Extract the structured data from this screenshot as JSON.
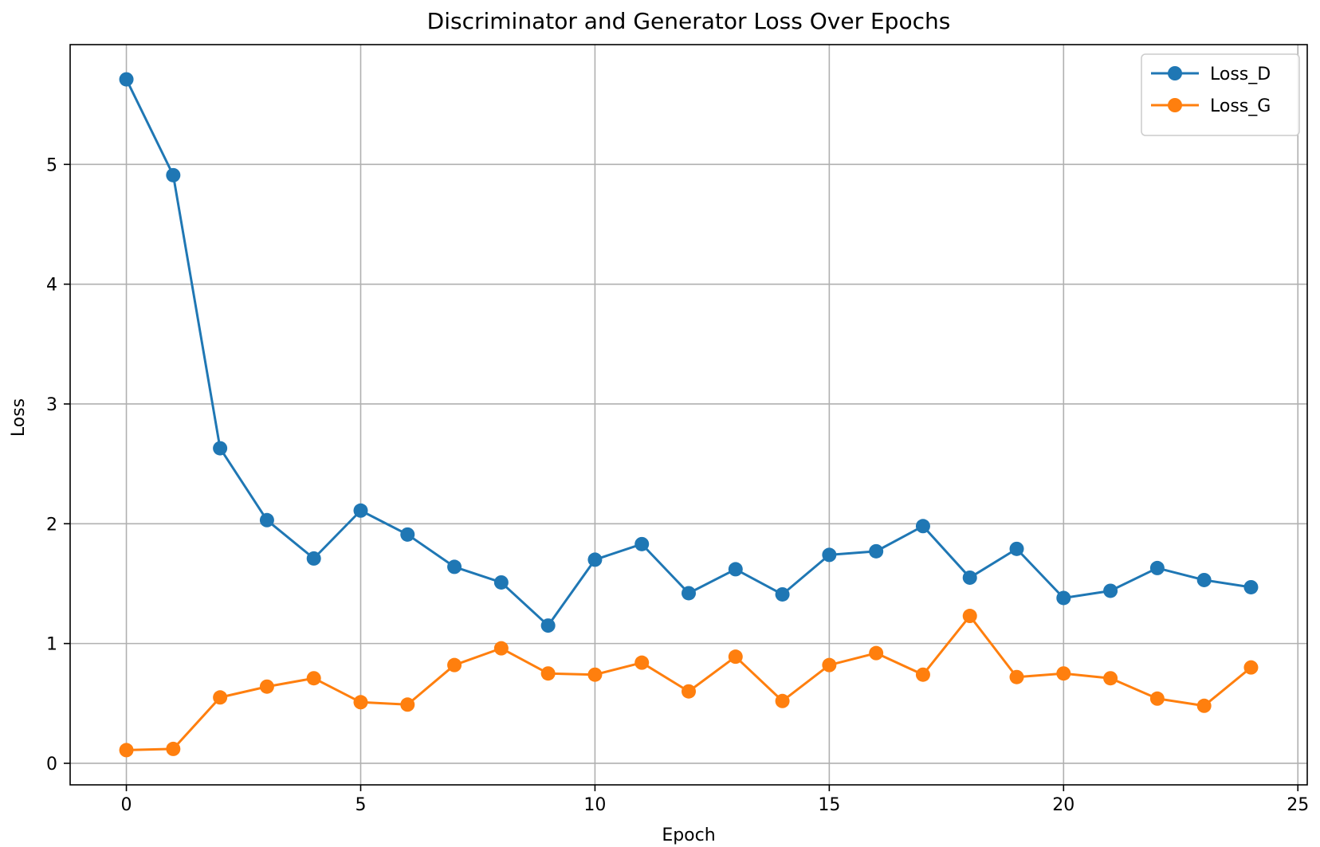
{
  "chart_data": {
    "type": "line",
    "title": "Discriminator and Generator Loss Over Epochs",
    "xlabel": "Epoch",
    "ylabel": "Loss",
    "xlim": [
      -1.2,
      25.2
    ],
    "ylim": [
      -0.18,
      6.0
    ],
    "xticks": [
      0,
      5,
      10,
      15,
      20,
      25
    ],
    "yticks": [
      0,
      1,
      2,
      3,
      4,
      5
    ],
    "grid": true,
    "legend_position": "top-right",
    "x": [
      0,
      1,
      2,
      3,
      4,
      5,
      6,
      7,
      8,
      9,
      10,
      11,
      12,
      13,
      14,
      15,
      16,
      17,
      18,
      19,
      20,
      21,
      22,
      23,
      24
    ],
    "series": [
      {
        "name": "Loss_D",
        "color": "#1f77b4",
        "values": [
          5.71,
          4.91,
          2.63,
          2.03,
          1.71,
          2.11,
          1.91,
          1.64,
          1.51,
          1.15,
          1.7,
          1.83,
          1.42,
          1.62,
          1.41,
          1.74,
          1.77,
          1.98,
          1.55,
          1.79,
          1.38,
          1.44,
          1.63,
          1.53,
          1.47
        ]
      },
      {
        "name": "Loss_G",
        "color": "#ff7f0e",
        "values": [
          0.11,
          0.12,
          0.55,
          0.64,
          0.71,
          0.51,
          0.49,
          0.82,
          0.96,
          0.75,
          0.74,
          0.84,
          0.6,
          0.89,
          0.52,
          0.82,
          0.92,
          0.74,
          1.23,
          0.72,
          0.75,
          0.71,
          0.54,
          0.48,
          0.8
        ]
      }
    ]
  }
}
